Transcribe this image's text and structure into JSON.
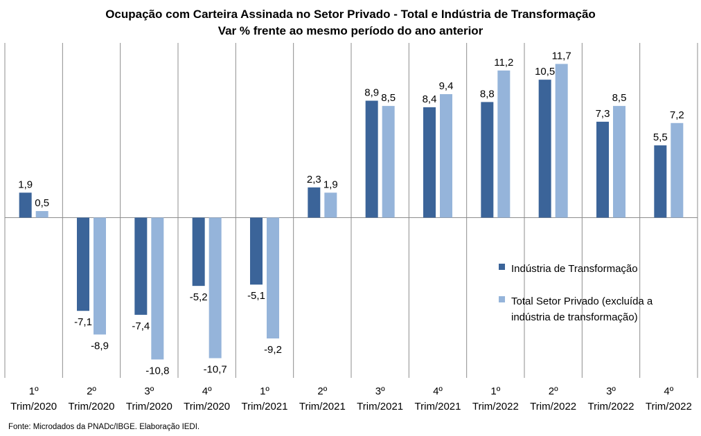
{
  "chart_data": {
    "type": "bar",
    "title": "Ocupação com Carteira Assinada no Setor Privado  - Total e Indústria de Transformação",
    "subtitle": "Var % frente ao mesmo período do ano anterior",
    "categories": [
      [
        "1º",
        "Trim/2020"
      ],
      [
        "2º",
        "Trim/2020"
      ],
      [
        "3º",
        "Trim/2020"
      ],
      [
        "4º",
        "Trim/2020"
      ],
      [
        "1º",
        "Trim/2021"
      ],
      [
        "2º",
        "Trim/2021"
      ],
      [
        "3º",
        "Trim/2021"
      ],
      [
        "4º",
        "Trim/2021"
      ],
      [
        "1º",
        "Trim/2022"
      ],
      [
        "2º",
        "Trim/2022"
      ],
      [
        "3º",
        "Trim/2022"
      ],
      [
        "4º",
        "Trim/2022"
      ]
    ],
    "series": [
      {
        "name": "Indústria de Transformação",
        "color": "#3B6499",
        "values": [
          1.9,
          -7.1,
          -7.4,
          -5.2,
          -5.1,
          2.3,
          8.9,
          8.4,
          8.8,
          10.5,
          7.3,
          5.5
        ],
        "labels": [
          "1,9",
          "-7,1",
          "-7,4",
          "-5,2",
          "-5,1",
          "2,3",
          "8,9",
          "8,4",
          "8,8",
          "10,5",
          "7,3",
          "5,5"
        ]
      },
      {
        "name": "Total Setor Privado (excluída a indústria de transformação)",
        "legend_lines": [
          "Total Setor Privado (excluída a",
          "indústria de transformação)"
        ],
        "color": "#95B4DA",
        "values": [
          0.5,
          -8.9,
          -10.8,
          -10.7,
          -9.2,
          1.9,
          8.5,
          9.4,
          11.2,
          11.7,
          8.5,
          7.2
        ],
        "labels": [
          "0,5",
          "-8,9",
          "-10,8",
          "-10,7",
          "-9,2",
          "1,9",
          "8,5",
          "9,4",
          "11,2",
          "11,7",
          "8,5",
          "7,2"
        ]
      }
    ],
    "ylim": [
      -12.2,
      13.3
    ],
    "grid": false,
    "vertical_separators": true,
    "legend_position": "center-right"
  },
  "source": "Fonte: Microdados da PNADc/IBGE. Elaboração IEDI."
}
